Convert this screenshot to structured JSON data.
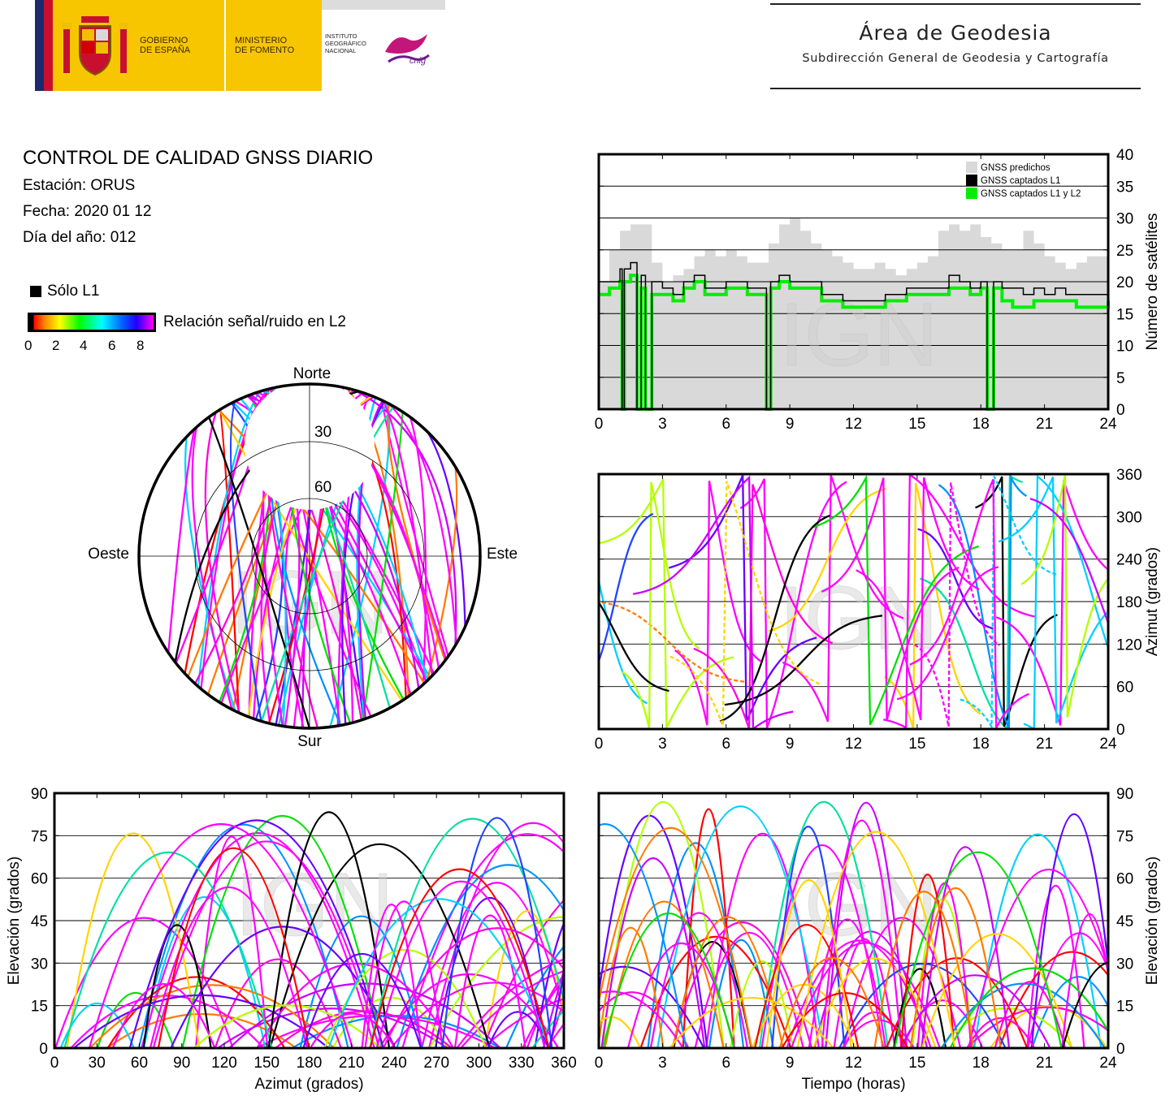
{
  "header": {
    "gobierno": [
      "GOBIERNO",
      "DE ESPAÑA"
    ],
    "ministerio": [
      "MINISTERIO",
      "DE FOMENTO"
    ],
    "instituto": [
      "INSTITUTO",
      "GEOGRÁFICO",
      "NACIONAL"
    ],
    "cnig_logo": "cnig",
    "area_title": "Área de Geodesia",
    "area_subtitle": "Subdirección General de Geodesia y Cartografía",
    "colors": {
      "yellow": "#f7c600",
      "red": "#c8102e",
      "blue": "#1c2a6b"
    }
  },
  "info": {
    "title": "CONTROL DE CALIDAD GNSS DIARIO",
    "station": "Estación: ORUS",
    "date": "Fecha: 2020 01 12",
    "doy": "Día del año: 012"
  },
  "legend": {
    "l1_only": "Sólo L1",
    "snr_label": "Relación señal/ruido en L2",
    "snr_ticks": [
      "0",
      "2",
      "4",
      "6",
      "8"
    ]
  },
  "watermark": "IGN",
  "chart_data": [
    {
      "type": "area",
      "name": "satellite-count",
      "xlim": [
        0,
        24
      ],
      "ylim": [
        0,
        40
      ],
      "xticks": [
        "0",
        "3",
        "6",
        "9",
        "12",
        "15",
        "18",
        "21",
        "24"
      ],
      "yticks": [
        "0",
        "5",
        "10",
        "15",
        "20",
        "25",
        "30",
        "35",
        "40"
      ],
      "ylabel": "Número de satélites",
      "legend": [
        "GNSS predichos",
        "GNSS captados L1",
        "GNSS captados L1 y L2"
      ],
      "legend_position": "top-right",
      "grid": true,
      "series": [
        {
          "name": "GNSS predichos",
          "color": "#d9d9d9",
          "x": [
            0,
            0.5,
            1,
            1.5,
            2,
            2.5,
            3,
            3.5,
            4,
            4.5,
            5,
            5.5,
            6,
            6.5,
            7,
            7.5,
            8,
            8.5,
            9,
            9.5,
            10,
            10.5,
            11,
            11.5,
            12,
            12.5,
            13,
            13.5,
            14,
            14.5,
            15,
            15.5,
            16,
            16.5,
            17,
            17.5,
            18,
            18.5,
            19,
            19.5,
            20,
            20.5,
            21,
            21.5,
            22,
            22.5,
            23,
            23.5,
            24
          ],
          "y": [
            20,
            25,
            28,
            29,
            29,
            23,
            20,
            21,
            22,
            24,
            25,
            24,
            25,
            24,
            23,
            23,
            26,
            29,
            30,
            28,
            26,
            25,
            24,
            23,
            22,
            22,
            23,
            22,
            21,
            22,
            23,
            24,
            28,
            29,
            28,
            29,
            27,
            26,
            25,
            25,
            28,
            26,
            24,
            23,
            22,
            23,
            24,
            24,
            21
          ]
        },
        {
          "name": "GNSS captados L1",
          "color": "#000000",
          "x": [
            0,
            0.5,
            1,
            1.1,
            1.2,
            1.5,
            1.8,
            2,
            2.2,
            2.5,
            3,
            3.5,
            4,
            4.5,
            5,
            5.5,
            6,
            6.5,
            7,
            7.5,
            7.9,
            8.1,
            8.5,
            9,
            9.5,
            10,
            10.5,
            11,
            11.5,
            12,
            12.5,
            13,
            13.5,
            14,
            14.5,
            15,
            15.5,
            16,
            16.5,
            17,
            17.5,
            18,
            18.3,
            18.6,
            19,
            19.5,
            20,
            20.5,
            21,
            21.5,
            22,
            22.5,
            23,
            23.5,
            24
          ],
          "y": [
            20,
            20,
            22,
            0,
            22,
            23,
            0,
            21,
            0,
            20,
            19,
            18,
            20,
            21,
            19,
            19,
            20,
            20,
            19,
            19,
            0,
            20,
            21,
            20,
            20,
            20,
            18,
            18,
            17,
            17,
            17,
            17,
            18,
            18,
            19,
            19,
            19,
            19,
            21,
            20,
            19,
            20,
            0,
            20,
            19,
            19,
            18,
            19,
            18,
            19,
            18,
            18,
            18,
            18,
            18
          ]
        },
        {
          "name": "GNSS captados L1 y L2",
          "color": "#00ee00",
          "x": [
            0,
            0.5,
            1,
            1.1,
            1.2,
            1.5,
            1.8,
            2,
            2.2,
            2.5,
            3,
            3.5,
            4,
            4.5,
            5,
            5.5,
            6,
            6.5,
            7,
            7.5,
            7.9,
            8.1,
            8.5,
            9,
            9.5,
            10,
            10.5,
            11,
            11.5,
            12,
            12.5,
            13,
            13.5,
            14,
            14.5,
            15,
            15.5,
            16,
            16.5,
            17,
            17.5,
            18,
            18.3,
            18.6,
            19,
            19.5,
            20,
            20.5,
            21,
            21.5,
            22,
            22.5,
            23,
            23.5,
            24
          ],
          "y": [
            18,
            19,
            20,
            0,
            20,
            21,
            0,
            19,
            0,
            18,
            18,
            17,
            19,
            20,
            18,
            18,
            19,
            19,
            18,
            18,
            0,
            19,
            20,
            19,
            19,
            19,
            17,
            17,
            16,
            16,
            16,
            16,
            17,
            17,
            18,
            18,
            18,
            18,
            19,
            19,
            18,
            19,
            0,
            19,
            17,
            16,
            16,
            17,
            17,
            17,
            17,
            16,
            16,
            16,
            17
          ]
        }
      ]
    },
    {
      "type": "scatter",
      "name": "azimuth-vs-time",
      "xlim": [
        0,
        24
      ],
      "ylim": [
        0,
        360
      ],
      "xticks": [
        "0",
        "3",
        "6",
        "9",
        "12",
        "15",
        "18",
        "21",
        "24"
      ],
      "yticks": [
        "0",
        "60",
        "120",
        "180",
        "240",
        "300",
        "360"
      ],
      "ylabel": "Azimut (grados)",
      "grid": true
    },
    {
      "type": "scatter",
      "name": "polar-skyplot",
      "labels": {
        "north": "Norte",
        "south": "Sur",
        "east": "Este",
        "west": "Oeste"
      },
      "rings": [
        "30",
        "60"
      ]
    },
    {
      "type": "scatter",
      "name": "elevation-vs-azimuth",
      "xlim": [
        0,
        360
      ],
      "ylim": [
        0,
        90
      ],
      "xticks": [
        "0",
        "30",
        "60",
        "90",
        "120",
        "150",
        "180",
        "210",
        "240",
        "270",
        "300",
        "330",
        "360"
      ],
      "yticks": [
        "0",
        "15",
        "30",
        "45",
        "60",
        "75",
        "90"
      ],
      "xlabel": "Azimut (grados)",
      "ylabel": "Elevación (grados)",
      "grid": true
    },
    {
      "type": "scatter",
      "name": "elevation-vs-time",
      "xlim": [
        0,
        24
      ],
      "ylim": [
        0,
        90
      ],
      "xticks": [
        "0",
        "3",
        "6",
        "9",
        "12",
        "15",
        "18",
        "21",
        "24"
      ],
      "yticks": [
        "0",
        "15",
        "30",
        "45",
        "60",
        "75",
        "90"
      ],
      "xlabel": "Tiempo (horas)",
      "ylabel": "Elevación (grados)",
      "grid": true
    }
  ]
}
